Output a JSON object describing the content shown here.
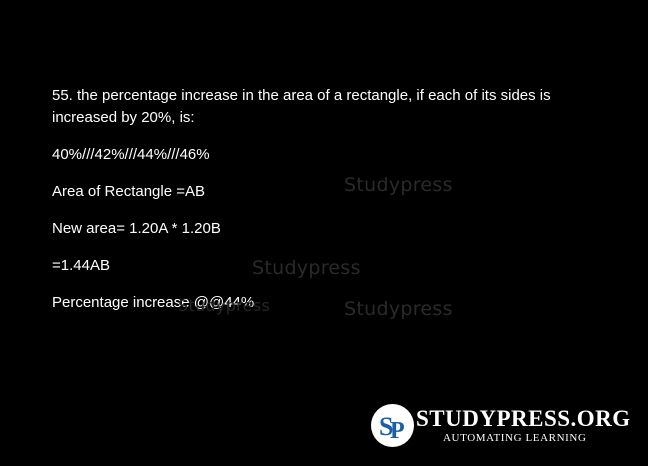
{
  "question": {
    "text": "55. the percentage increase in the area of a rectangle, if each of its sides is increased by 20%, is:"
  },
  "options": "40%///42%///44%///46%",
  "solution": {
    "line1": "Area of Rectangle =AB",
    "line2": "New area= 1.20A * 1.20B",
    "line3": "=1.44AB",
    "line4": "Percentage increase @@44%"
  },
  "watermarks": {
    "text": "Studypress",
    "faint": "Studypress"
  },
  "logo": {
    "brand": "STUDYPRESS.ORG",
    "tagline": "AUTOMATING LEARNING",
    "mark": "SP",
    "colors": {
      "mark_blue": "#1a5fa8",
      "circle": "#ffffff"
    }
  }
}
